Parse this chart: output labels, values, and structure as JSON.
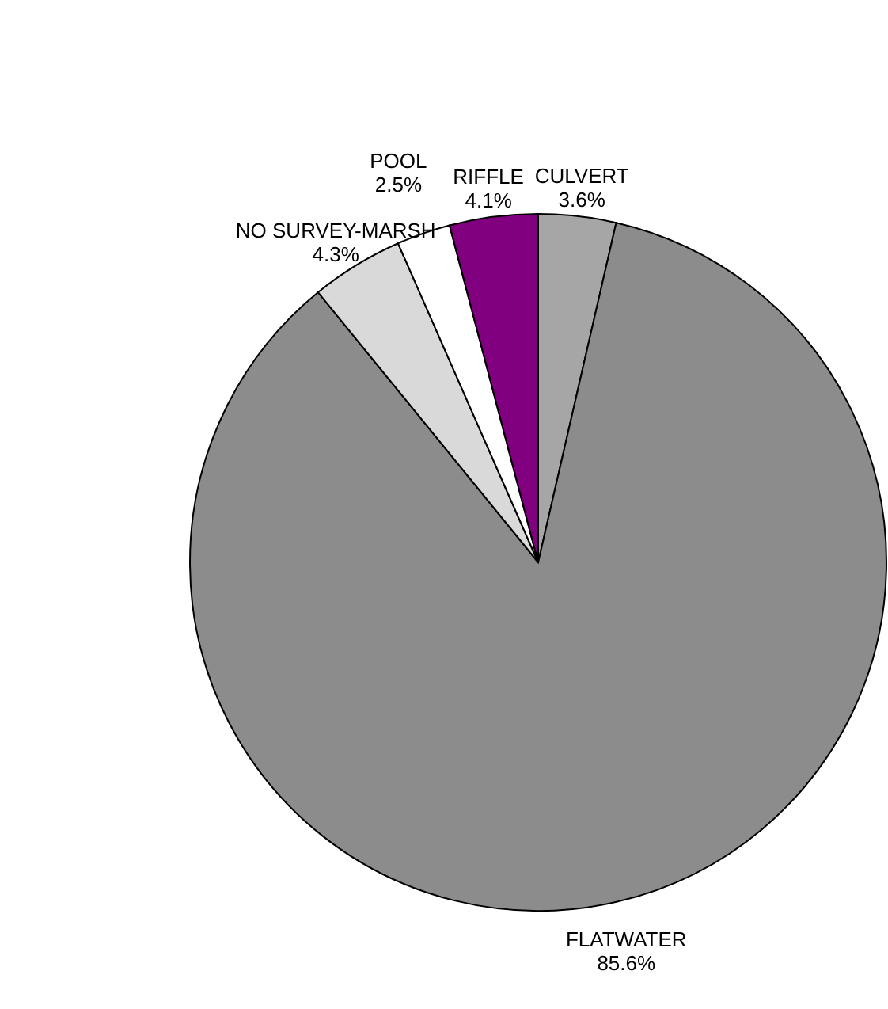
{
  "chart_data": {
    "type": "pie",
    "categories": [
      "CULVERT",
      "FLATWATER",
      "NO SURVEY-MARSH",
      "POOL",
      "RIFFLE"
    ],
    "values": [
      3.6,
      85.6,
      4.3,
      2.5,
      4.1
    ],
    "value_labels": [
      "3.6%",
      "85.6%",
      "4.3%",
      "2.5%",
      "4.1%"
    ],
    "colors": [
      "#a6a6a6",
      "#8c8c8c",
      "#d9d9d9",
      "#ffffff",
      "#800080"
    ],
    "legend": false
  }
}
